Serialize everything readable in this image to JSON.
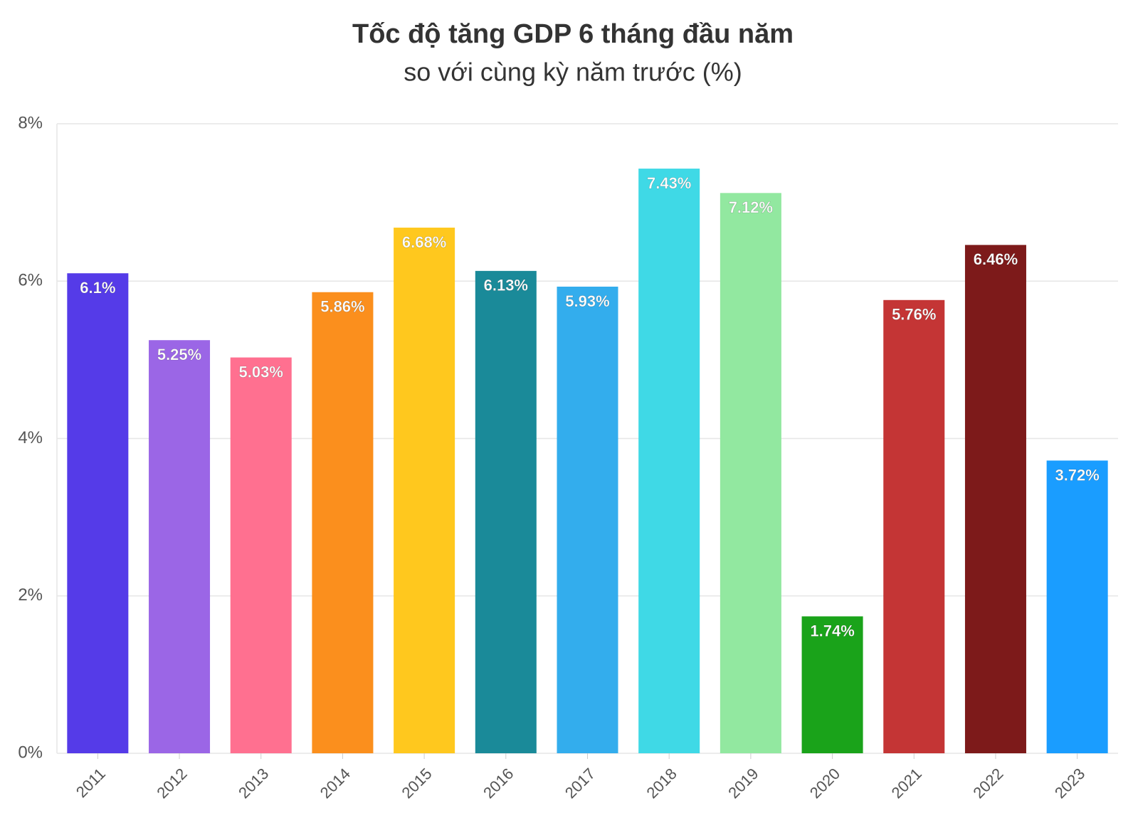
{
  "chart_data": {
    "type": "bar",
    "title": "Tốc độ tăng GDP 6 tháng đầu năm",
    "subtitle": "so với cùng kỳ năm trước (%)",
    "categories": [
      "2011",
      "2012",
      "2013",
      "2014",
      "2015",
      "2016",
      "2017",
      "2018",
      "2019",
      "2020",
      "2021",
      "2022",
      "2023"
    ],
    "values": [
      6.1,
      5.25,
      5.03,
      5.86,
      6.68,
      6.13,
      5.93,
      7.43,
      7.12,
      1.74,
      5.76,
      6.46,
      3.72
    ],
    "value_labels": [
      "6.1%",
      "5.25%",
      "5.03%",
      "5.86%",
      "6.68%",
      "6.13%",
      "5.93%",
      "7.43%",
      "7.12%",
      "1.74%",
      "5.76%",
      "6.46%",
      "3.72%"
    ],
    "colors": [
      "#553be8",
      "#9b66e6",
      "#ff7090",
      "#fb8f1d",
      "#ffc81e",
      "#1a8a99",
      "#33aded",
      "#3fd9e6",
      "#92e8a0",
      "#1aa31a",
      "#c43535",
      "#7d1a1a",
      "#1a9dff"
    ],
    "ylim": [
      0,
      8
    ],
    "yticks": [
      {
        "value": 0,
        "label": "0%"
      },
      {
        "value": 2,
        "label": "2%"
      },
      {
        "value": 4,
        "label": "4%"
      },
      {
        "value": 6,
        "label": "6%"
      },
      {
        "value": 8,
        "label": "8%"
      }
    ],
    "grid": true
  }
}
